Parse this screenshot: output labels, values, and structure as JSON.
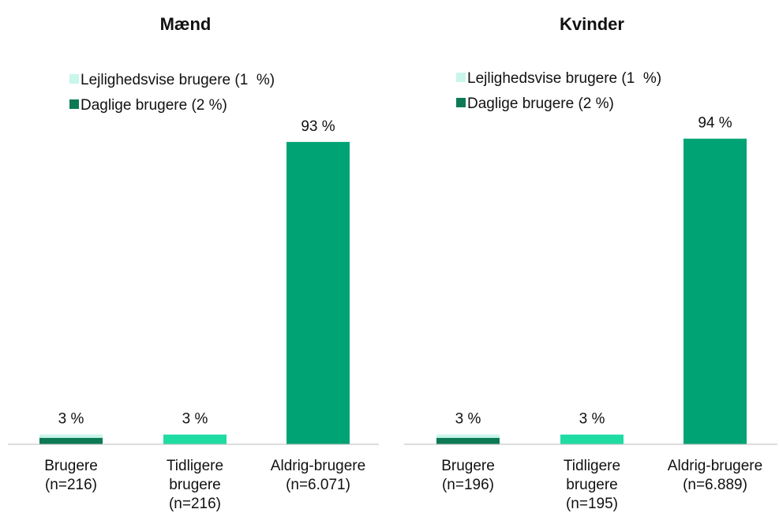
{
  "chart_data": [
    {
      "type": "bar",
      "title": "Mænd",
      "categories": [
        [
          "Brugere",
          "(n=216)"
        ],
        [
          "Tidligere",
          "brugere",
          "(n=216)"
        ],
        [
          "Aldrig-brugere",
          "(n=6.071)"
        ]
      ],
      "values": [
        3,
        3,
        93
      ],
      "value_labels": [
        "3 %",
        "3 %",
        "93 %"
      ],
      "colors": [
        null,
        "#1fdca3",
        "#00a374"
      ],
      "series": [
        {
          "name": "Lejlighedsvise brugere (1  %)",
          "color": "#c8f6ea",
          "values": [
            1,
            null,
            null
          ]
        },
        {
          "name": "Daglige brugere (2 %)",
          "color": "#0d7a55",
          "values": [
            2,
            null,
            null
          ]
        }
      ],
      "ylim": [
        0,
        100
      ]
    },
    {
      "type": "bar",
      "title": "Kvinder",
      "categories": [
        [
          "Brugere",
          "(n=196)"
        ],
        [
          "Tidligere",
          "brugere",
          "(n=195)"
        ],
        [
          "Aldrig-brugere",
          "(n=6.889)"
        ]
      ],
      "values": [
        3,
        3,
        94
      ],
      "value_labels": [
        "3 %",
        "3 %",
        "94 %"
      ],
      "colors": [
        null,
        "#1fdca3",
        "#00a374"
      ],
      "series": [
        {
          "name": "Lejlighedsvise brugere (1  %)",
          "color": "#c8f6ea",
          "values": [
            1,
            null,
            null
          ]
        },
        {
          "name": "Daglige brugere (2 %)",
          "color": "#0d7a55",
          "values": [
            2,
            null,
            null
          ]
        }
      ],
      "ylim": [
        0,
        100
      ]
    }
  ]
}
